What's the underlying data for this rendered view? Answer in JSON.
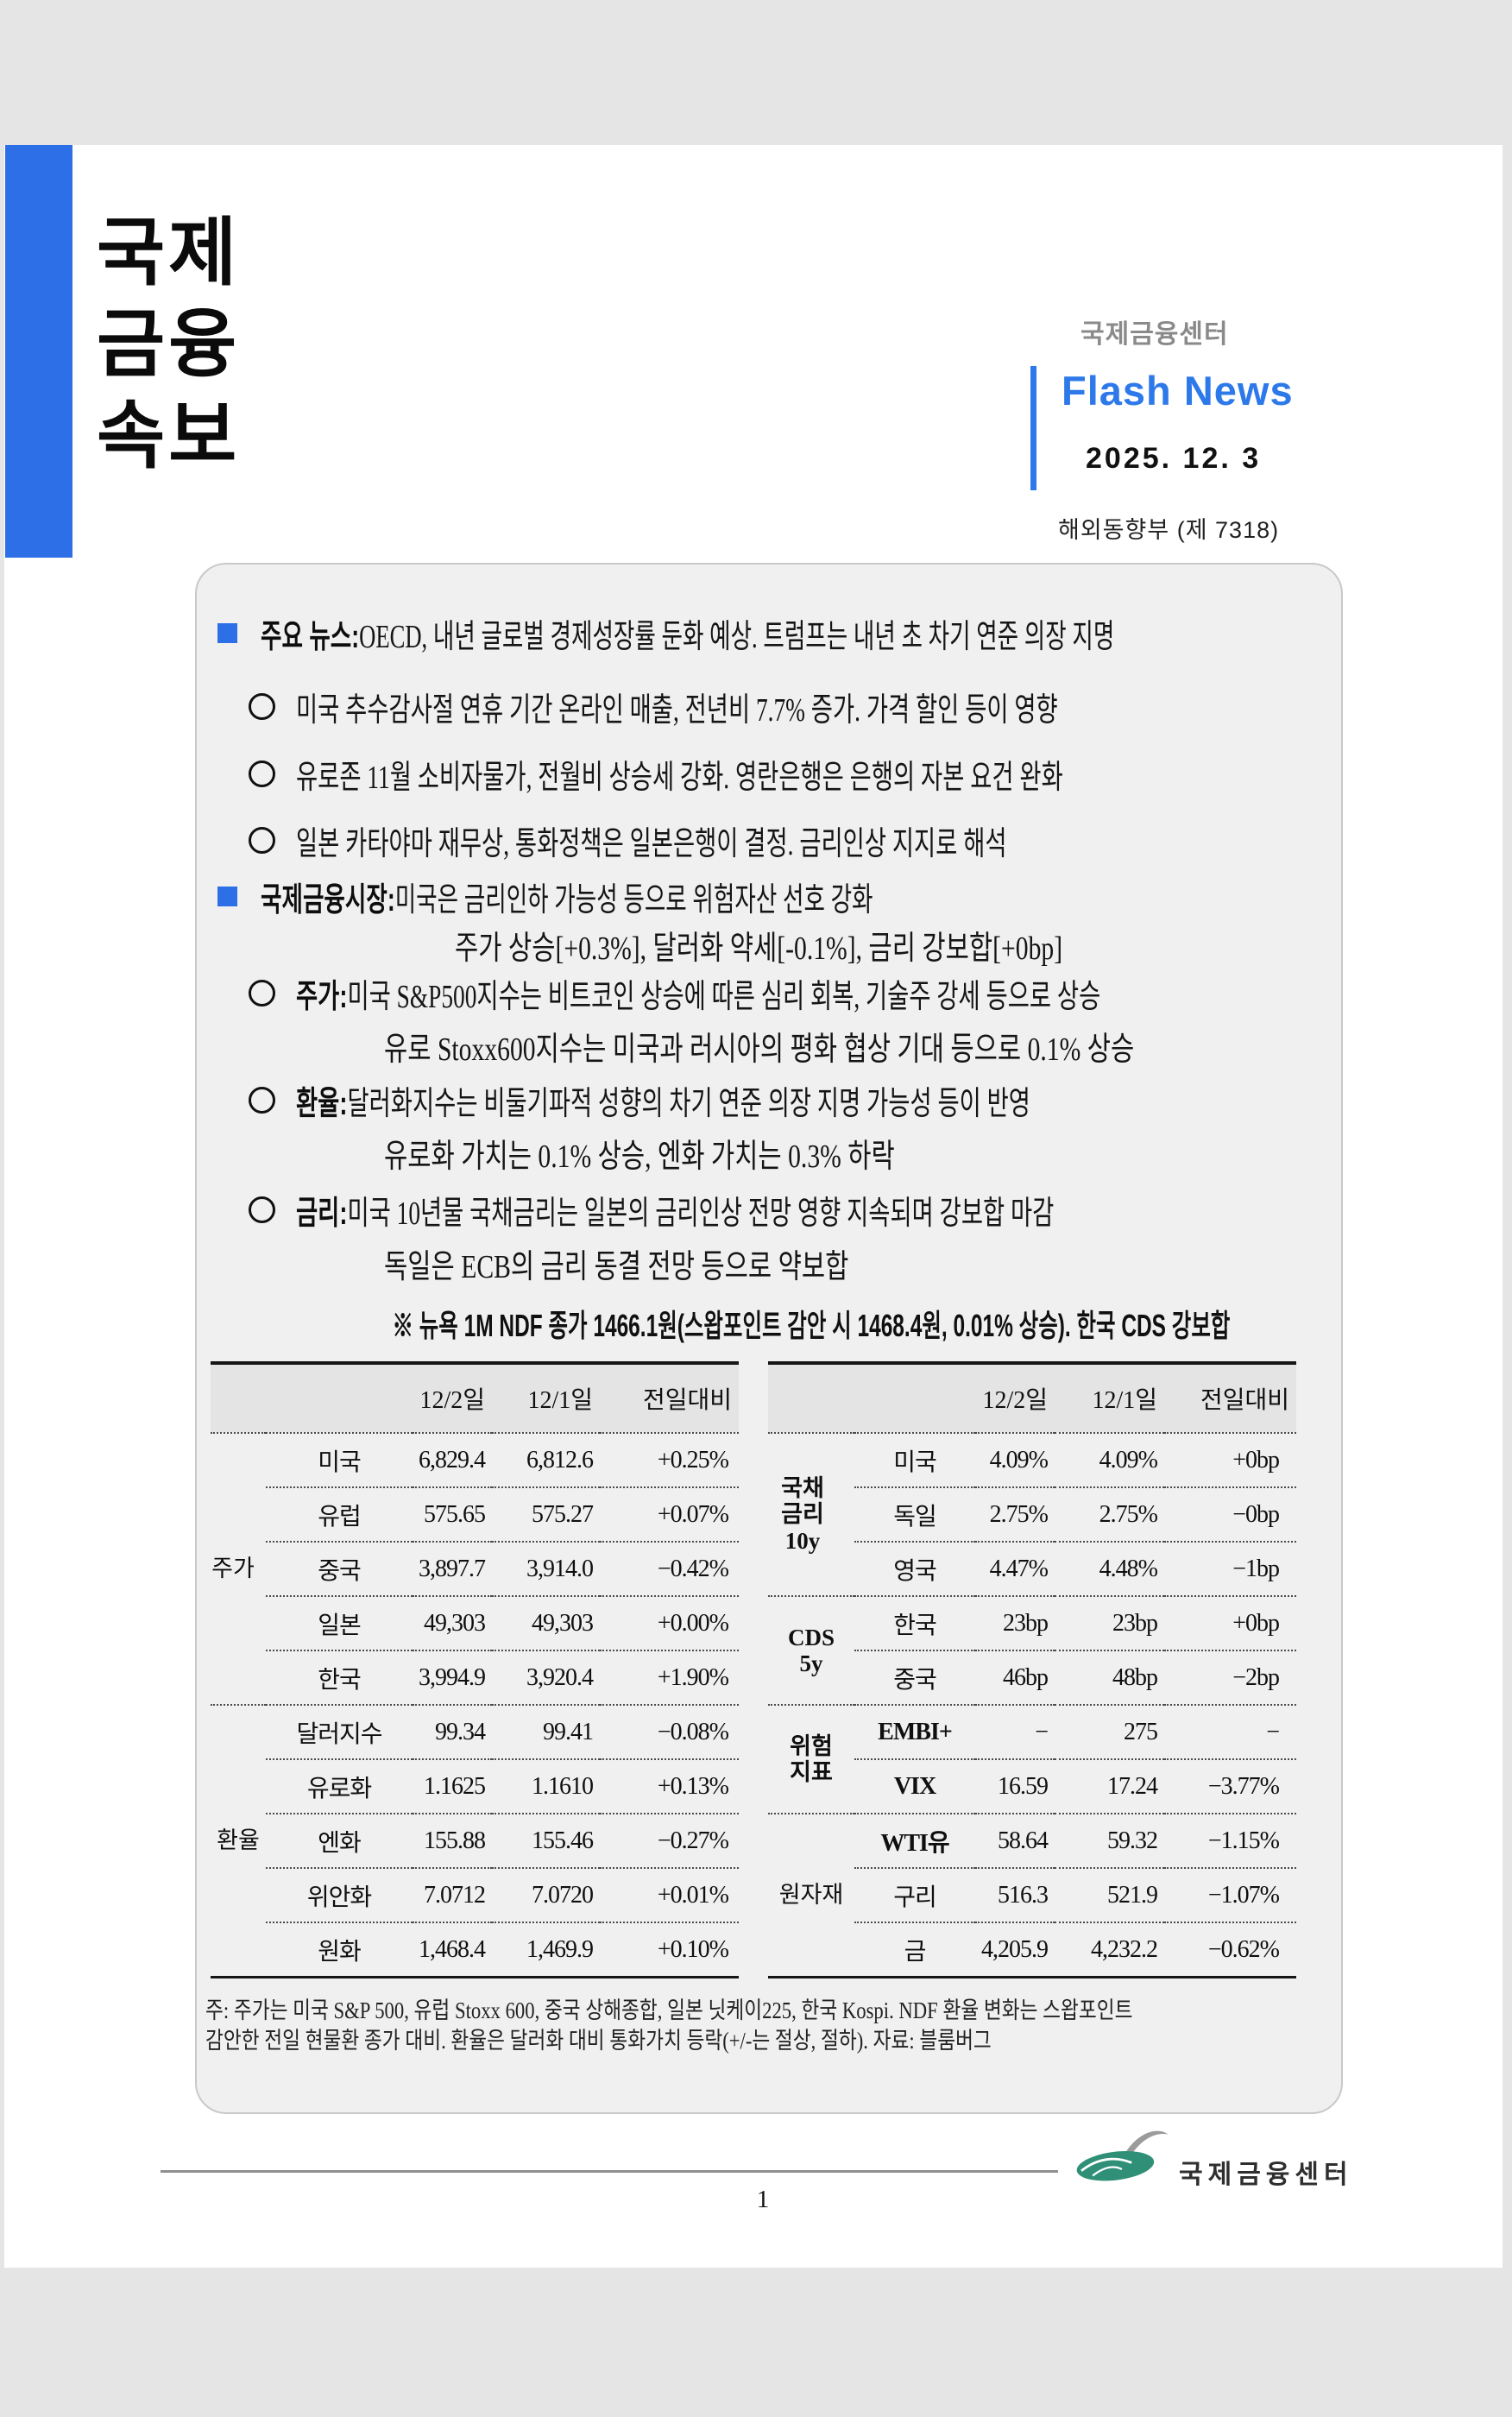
{
  "masthead": {
    "title_lines": [
      "국제",
      "금융",
      "속보"
    ]
  },
  "header": {
    "org": "국제금융센터",
    "bulletin": "Flash News",
    "date": "2025. 12. 3",
    "dept": "해외동향부 (제 7318)"
  },
  "colors": {
    "accent_blue": "#2c6fe6",
    "flash_blue": "#2e79ea",
    "logo_green": "#2f9077"
  },
  "news": {
    "lines": [
      {
        "bullet": "square",
        "prefix": "주요 뉴스: ",
        "text": "OECD, 내년 글로벌 경제성장률 둔화 예상. 트럼프는 내년 초 차기 연준 의장 지명"
      },
      {
        "bullet": "circle",
        "prefix": "",
        "text": "미국 추수감사절 연휴 기간 온라인 매출, 전년비 7.7% 증가. 가격 할인 등이 영향"
      },
      {
        "bullet": "circle",
        "prefix": "",
        "text": "유로존 11월 소비자물가, 전월비 상승세 강화. 영란은행은 은행의 자본 요건 완화"
      },
      {
        "bullet": "circle",
        "prefix": "",
        "text": "일본 카타야마 재무상, 통화정책은 일본은행이 결정. 금리인상 지지로 해석"
      },
      {
        "bullet": "square",
        "prefix": "국제금융시장: ",
        "text": "미국은 금리인하 가능성 등으로 위험자산 선호 강화"
      },
      {
        "bullet": "none",
        "prefix": "",
        "text": "주가 상승[+0.3%], 달러화 약세[-0.1%], 금리 강보합[+0bp]"
      },
      {
        "bullet": "circle",
        "prefix": "주가: ",
        "text": "미국 S&P500지수는 비트코인 상승에 따른 심리 회복, 기술주 강세 등으로 상승"
      },
      {
        "bullet": "none",
        "prefix": "",
        "text": "유로 Stoxx600지수는 미국과 러시아의 평화 협상 기대 등으로 0.1% 상승"
      },
      {
        "bullet": "circle",
        "prefix": "환율: ",
        "text": "달러화지수는 비둘기파적 성향의 차기 연준 의장 지명 가능성 등이 반영"
      },
      {
        "bullet": "none",
        "prefix": "",
        "text": "유로화 가치는 0.1% 상승, 엔화 가치는 0.3% 하락"
      },
      {
        "bullet": "circle",
        "prefix": "금리: ",
        "text": "미국 10년물 국채금리는 일본의 금리인상 전망 영향 지속되며 강보합 마감"
      },
      {
        "bullet": "none",
        "prefix": "",
        "text": "독일은 ECB의 금리 동결 전망 등으로 약보합"
      }
    ],
    "ndf_note": "※ 뉴욕 1M NDF 종가 1466.1원(스왑포인트 감안 시 1468.4원, 0.01% 상승). 한국 CDS 강보합"
  },
  "tables": {
    "headers": [
      "12/2일",
      "12/1일",
      "전일대비"
    ],
    "left": {
      "groups": [
        {
          "label": "주가",
          "bold": false,
          "rows": [
            {
              "name": "미국",
              "v1": "6,829.4",
              "v2": "6,812.6",
              "chg": "+0.25%"
            },
            {
              "name": "유럽",
              "v1": "575.65",
              "v2": "575.27",
              "chg": "+0.07%"
            },
            {
              "name": "중국",
              "v1": "3,897.7",
              "v2": "3,914.0",
              "chg": "−0.42%"
            },
            {
              "name": "일본",
              "v1": "49,303",
              "v2": "49,303",
              "chg": "+0.00%"
            },
            {
              "name": "한국",
              "v1": "3,994.9",
              "v2": "3,920.4",
              "chg": "+1.90%"
            }
          ]
        },
        {
          "label": "환율",
          "bold": false,
          "rows": [
            {
              "name": "달러지수",
              "v1": "99.34",
              "v2": "99.41",
              "chg": "−0.08%"
            },
            {
              "name": "유로화",
              "v1": "1.1625",
              "v2": "1.1610",
              "chg": "+0.13%"
            },
            {
              "name": "엔화",
              "v1": "155.88",
              "v2": "155.46",
              "chg": "−0.27%"
            },
            {
              "name": "위안화",
              "v1": "7.0712",
              "v2": "7.0720",
              "chg": "+0.01%"
            },
            {
              "name": "원화",
              "v1": "1,468.4",
              "v2": "1,469.9",
              "chg": "+0.10%"
            }
          ]
        }
      ]
    },
    "right": {
      "groups": [
        {
          "label": "국채\n금리\n10y",
          "bold": true,
          "rows": [
            {
              "name": "미국",
              "v1": "4.09%",
              "v2": "4.09%",
              "chg": "+0bp"
            },
            {
              "name": "독일",
              "v1": "2.75%",
              "v2": "2.75%",
              "chg": "−0bp"
            },
            {
              "name": "영국",
              "v1": "4.47%",
              "v2": "4.48%",
              "chg": "−1bp"
            }
          ]
        },
        {
          "label": "CDS\n5y",
          "bold": true,
          "rows": [
            {
              "name": "한국",
              "v1": "23bp",
              "v2": "23bp",
              "chg": "+0bp"
            },
            {
              "name": "중국",
              "v1": "46bp",
              "v2": "48bp",
              "chg": "−2bp"
            }
          ]
        },
        {
          "label": "위험\n지표",
          "bold": true,
          "rows": [
            {
              "name": "EMBI+",
              "bold": true,
              "v1": "−",
              "v2": "275",
              "chg": "−"
            },
            {
              "name": "VIX",
              "bold": true,
              "v1": "16.59",
              "v2": "17.24",
              "chg": "−3.77%"
            }
          ]
        },
        {
          "label": "원자재",
          "bold": false,
          "rows": [
            {
              "name": "WTI유",
              "bold": true,
              "v1": "58.64",
              "v2": "59.32",
              "chg": "−1.15%"
            },
            {
              "name": "구리",
              "v1": "516.3",
              "v2": "521.9",
              "chg": "−1.07%"
            },
            {
              "name": "금",
              "v1": "4,205.9",
              "v2": "4,232.2",
              "chg": "−0.62%"
            }
          ]
        }
      ]
    }
  },
  "footnote_lines": [
    "주: 주가는 미국 S&P 500, 유럽 Stoxx 600, 중국 상해종합, 일본 닛케이225, 한국 Kospi. NDF 환율 변화는 스왑포인트",
    "감안한 전일 현물환 종가 대비. 환율은 달러화 대비 통화가치 등락(+/-는 절상, 절하). 자료: 블룸버그"
  ],
  "footer": {
    "logo_text": "국제금융센터",
    "page_number": "1"
  }
}
